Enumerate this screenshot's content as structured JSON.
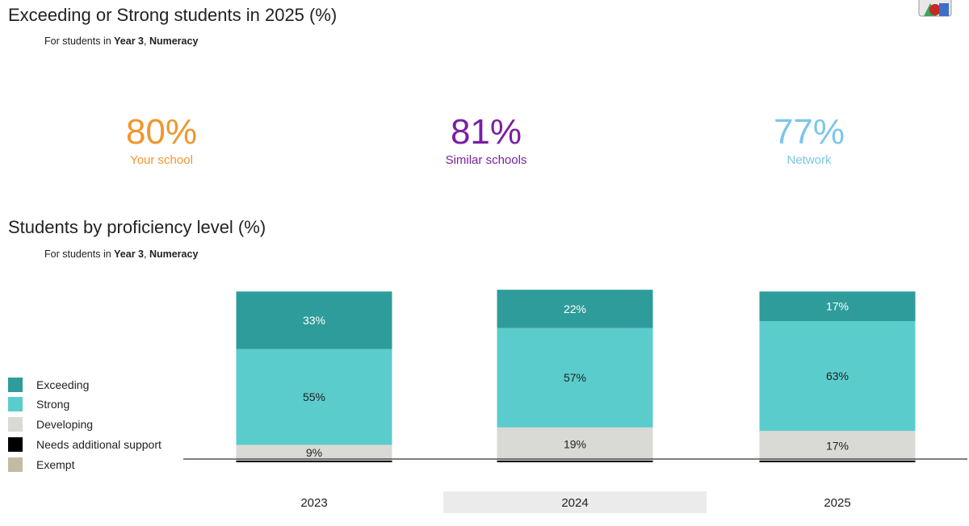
{
  "kpi_section": {
    "title": "Exceeding or Strong students in 2025 (%)",
    "subtitle_prefix": "For students in ",
    "subtitle_year": "Year 3",
    "subtitle_sep": ", ",
    "subtitle_subject": "Numeracy",
    "kpis": [
      {
        "value": "80%",
        "label": "Your school",
        "color": "#F0962E"
      },
      {
        "value": "81%",
        "label": "Similar schools",
        "color": "#7B1FA2"
      },
      {
        "value": "77%",
        "label": "Network",
        "color": "#7CC6E8"
      }
    ]
  },
  "chart_section": {
    "title": "Students by proficiency level (%)",
    "subtitle_prefix": "For students in ",
    "subtitle_year": "Year 3",
    "subtitle_sep": ", ",
    "subtitle_subject": "Numeracy"
  },
  "legend": [
    {
      "label": "Exceeding",
      "color": "#2E9C9A"
    },
    {
      "label": "Strong",
      "color": "#5BCCCC"
    },
    {
      "label": "Developing",
      "color": "#D9D9D5"
    },
    {
      "label": "Needs additional support",
      "color": "#000000"
    },
    {
      "label": "Exempt",
      "color": "#C2BCA3"
    }
  ],
  "app_icon": "shapes-icon",
  "chart_data": {
    "type": "bar",
    "stacked": true,
    "categories": [
      "2023",
      "2024",
      "2025"
    ],
    "highlighted_category": "2024",
    "series": [
      {
        "name": "Needs additional support",
        "values": [
          1,
          1,
          1
        ],
        "labels": [
          "",
          "",
          ""
        ]
      },
      {
        "name": "Developing",
        "values": [
          9,
          19,
          17
        ],
        "labels": [
          "9%",
          "19%",
          "17%"
        ]
      },
      {
        "name": "Strong",
        "values": [
          55,
          57,
          63
        ],
        "labels": [
          "55%",
          "57%",
          "63%"
        ]
      },
      {
        "name": "Exceeding",
        "values": [
          33,
          22,
          17
        ],
        "labels": [
          "33%",
          "22%",
          "17%"
        ]
      }
    ],
    "label_colors": {
      "Exceeding": "#ffffff",
      "Strong": "#222222",
      "Developing": "#222222"
    },
    "ylim": [
      0,
      100
    ],
    "grid": false,
    "legend_position": "left"
  }
}
